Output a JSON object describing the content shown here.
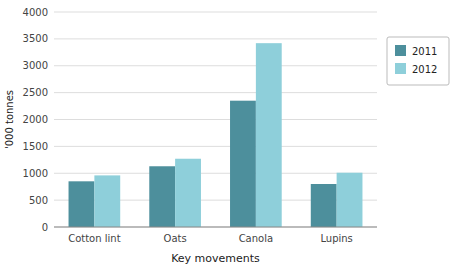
{
  "chart_data": {
    "type": "bar",
    "categories": [
      "Cotton lint",
      "Oats",
      "Canola",
      "Lupins"
    ],
    "series": [
      {
        "name": "2011",
        "color": "#4d8f9c",
        "values": [
          850,
          1130,
          2350,
          800
        ]
      },
      {
        "name": "2012",
        "color": "#8ecfda",
        "values": [
          960,
          1270,
          3420,
          1010
        ]
      }
    ],
    "xlabel": "Key movements",
    "ylabel": "'000 tonnes",
    "ylim": [
      0,
      4000
    ],
    "yticks": [
      0,
      500,
      1000,
      1500,
      2000,
      2500,
      3000,
      3500,
      4000
    ],
    "grid": true,
    "legend": "right"
  }
}
